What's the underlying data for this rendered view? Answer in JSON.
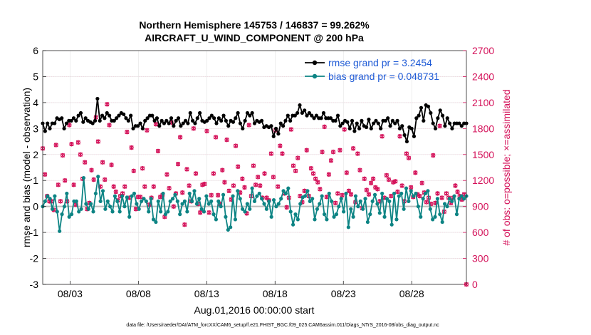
{
  "chart_data": {
    "type": "line",
    "title": "Northern Hemisphere 145753 / 146837 = 99.262%",
    "subtitle": "AIRCRAFT_U_WIND_COMPONENT @ 200 hPa",
    "xlabel": "Aug.01,2016 00:00:00 start",
    "ylabel": "rmse and bias (model - observation)",
    "ylabel_right": "# of obs: o=possible; ×=assimilated",
    "footer": "data file: /Users/raeder/DAI/ATM_forcXX/CAM6_setup/f.e21.FHIST_BGC.f09_025.CAM6assim.011/Diags_NTrS_2016-08/obs_diag_output.nc",
    "ylim": [
      -3,
      6
    ],
    "ylim_right": [
      0,
      2700
    ],
    "yticks": [
      "-3",
      "-2",
      "-1",
      "0",
      "1",
      "2",
      "3",
      "4",
      "5",
      "6"
    ],
    "yticks_right": [
      "0",
      "300",
      "600",
      "900",
      "1200",
      "1500",
      "1800",
      "2100",
      "2400",
      "2700"
    ],
    "x_range_days": [
      1.0,
      32.0
    ],
    "xticks": [
      {
        "day": 3,
        "label": "08/03"
      },
      {
        "day": 8,
        "label": "08/08"
      },
      {
        "day": 13,
        "label": "08/13"
      },
      {
        "day": 18,
        "label": "08/18"
      },
      {
        "day": 23,
        "label": "08/23"
      },
      {
        "day": 28,
        "label": "08/28"
      }
    ],
    "grid": true,
    "legend_position": "top-right",
    "series": [
      {
        "name": "rmse grand pr = 3.2454",
        "color": "#000000",
        "values": [
          3.2,
          2.9,
          3.2,
          3.0,
          3.2,
          3.2,
          3.4,
          3.35,
          3.4,
          3.0,
          3.2,
          3.3,
          3.3,
          3.4,
          3.3,
          3.5,
          3.6,
          3.25,
          3.4,
          3.3,
          3.25,
          3.2,
          3.3,
          4.15,
          3.3,
          3.5,
          3.4,
          3.6,
          3.5,
          3.3,
          3.3,
          3.4,
          3.5,
          3.6,
          3.55,
          3.4,
          3.3,
          3.5,
          3.0,
          3.1,
          3.1,
          3.2,
          3.0,
          3.3,
          3.4,
          3.5,
          3.5,
          3.3,
          3.4,
          3.1,
          3.3,
          3.2,
          3.3,
          3.2,
          3.4,
          3.1,
          3.3,
          3.4,
          3.1,
          3.2,
          3.3,
          3.2,
          3.6,
          3.3,
          3.2,
          3.4,
          3.6,
          3.3,
          3.25,
          3.3,
          3.4,
          3.5,
          3.4,
          3.2,
          3.4,
          3.3,
          3.5,
          3.3,
          3.1,
          3.3,
          3.25,
          3.4,
          3.6,
          3.2,
          3.0,
          3.3,
          3.6,
          3.5,
          3.6,
          3.2,
          3.3,
          3.25,
          3.3,
          3.05,
          3.1,
          3.05,
          3.1,
          2.7,
          3.0,
          2.8,
          3.2,
          3.1,
          3.3,
          3.5,
          3.3,
          3.5,
          3.5,
          3.6,
          3.9,
          3.6,
          3.7,
          3.5,
          3.6,
          3.5,
          3.4,
          3.5,
          3.4,
          3.4,
          3.6,
          3.4,
          3.4,
          3.4,
          3.3,
          3.3,
          3.5,
          3.1,
          3.2,
          3.3,
          3.25,
          3.0,
          3.3,
          2.9,
          3.2,
          3.0,
          3.3,
          3.1,
          3.05,
          3.35,
          3.0,
          3.2,
          3.3,
          3.2,
          3.0,
          3.3,
          3.3,
          3.4,
          3.1,
          3.3,
          3.2,
          3.3,
          3.0,
          3.1,
          2.75,
          2.5,
          3.05,
          3.0,
          2.7,
          3.4,
          3.5,
          3.8,
          3.3,
          3.9,
          3.85,
          3.6,
          3.2,
          3.0,
          3.4,
          3.7,
          3.5,
          3.1,
          3.4,
          3.2,
          3.0,
          3.2,
          3.2,
          3.2,
          3.1,
          3.2,
          3.2
        ]
      },
      {
        "name": "bias grand pr = 0.048731",
        "color": "#0d8484",
        "values": [
          0.0,
          0.2,
          0.4,
          0.3,
          -0.1,
          0.4,
          -0.2,
          -0.95,
          -0.3,
          0.0,
          0.5,
          -0.4,
          -0.3,
          0.2,
          0.2,
          -0.2,
          -0.1,
          1.1,
          0.1,
          -0.1,
          0.1,
          -0.2,
          0.5,
          1.15,
          0.2,
          0.6,
          -0.1,
          0.2,
          0.0,
          -0.2,
          0.4,
          0.2,
          -0.2,
          0.4,
          0.0,
          0.35,
          -0.4,
          0.4,
          0.5,
          0.1,
          -0.1,
          0.2,
          0.3,
          0.2,
          -0.2,
          0.3,
          -0.5,
          -0.6,
          0.2,
          -0.2,
          0.5,
          -0.3,
          -0.2,
          0.2,
          0.3,
          0.45,
          0.2,
          -0.3,
          0.1,
          0.2,
          -0.2,
          0.5,
          0.2,
          0.6,
          0.1,
          0.3,
          -0.1,
          -0.2,
          0.4,
          0.1,
          0.2,
          -0.3,
          -0.5,
          0.2,
          0.0,
          0.45,
          -0.4,
          -0.9,
          -0.8,
          0.4,
          -0.5,
          0.6,
          0.3,
          -0.1,
          -0.2,
          0.1,
          -0.1,
          0.7,
          0.2,
          0.4,
          0.5,
          0.3,
          0.1,
          -0.1,
          0.2,
          -0.4,
          0.25,
          0.0,
          0.1,
          0.3,
          0.6,
          0.5,
          0.7,
          -0.2,
          -0.7,
          -0.3,
          -0.5,
          0.1,
          0.35,
          0.4,
          0.6,
          0.2,
          0.3,
          -0.5,
          -0.1,
          0.1,
          0.4,
          -0.3,
          -0.5,
          0.5,
          0.2,
          -0.4,
          -0.3,
          0.0,
          0.3,
          -0.2,
          0.5,
          -0.8,
          -0.1,
          -0.4,
          0.4,
          0.0,
          0.2,
          -0.1,
          0.3,
          -0.6,
          -0.3,
          0.2,
          0.45,
          0.1,
          -0.25,
          0.5,
          -0.4,
          0.3,
          0.2,
          -0.7,
          0.5,
          -0.5,
          0.4,
          0.5,
          -0.1,
          0.7,
          0.2,
          0.6,
          0.4,
          0.5,
          0.0,
          -0.4,
          0.3,
          0.5,
          0.6,
          -0.1,
          -0.5,
          -0.4,
          0.3,
          -0.3,
          -0.6,
          0.1,
          0.0,
          0.3,
          0.2,
          0.4,
          -0.3,
          0.3,
          0.4,
          0.3,
          0.4
        ]
      },
      {
        "name": "# of obs",
        "color": "#d41159",
        "values": [
          1570,
          1270,
          1020,
          960,
          960,
          860,
          1610,
          1150,
          960,
          1490,
          1200,
          960,
          1840,
          1620,
          1150,
          920,
          1640,
          1500,
          1220,
          1410,
          870,
          940,
          1320,
          1210,
          1930,
          1650,
          1130,
          1410,
          1210,
          2080,
          1840,
          1380,
          1130,
          1070,
          970,
          1020,
          1050,
          1130,
          1760,
          1000,
          1580,
          1310,
          870,
          1010,
          1010,
          1340,
          1130,
          1780,
          920,
          1000,
          1130,
          1850,
          1540,
          1010,
          1030,
          780,
          1270,
          1110,
          1870,
          900,
          1050,
          1390,
          1700,
          1060,
          690,
          1330,
          1140,
          960,
          1800,
          1280,
          930,
          830,
          1150,
          1160,
          1770,
          830,
          1030,
          1280,
          1700,
          1030,
          930,
          1320,
          1180,
          1670,
          1080,
          980,
          1140,
          1600,
          1360,
          1060,
          1220,
          1120,
          820,
          1840,
          1020,
          1370,
          1150,
          1240,
          1140,
          1000,
          1280,
          1000,
          970,
          1510,
          1240,
          1780,
          1130,
          1600,
          1510,
          1050,
          890,
          1000,
          1790,
          1370,
          1310,
          1460,
          1020,
          950,
          1080,
          1550,
          1020,
          1340,
          1280,
          1220,
          1180,
          1100,
          1530,
          1820,
          1010,
          1270,
          1430,
          1530,
          940,
          1050,
          1550,
          1030,
          1790,
          1290,
          1080,
          1040,
          1570,
          950,
          1510,
          1320,
          880,
          1220,
          1090,
          1040,
          1170,
          1220,
          1120,
          1100,
          960,
          1710,
          1000,
          1260,
          1210,
          1020,
          1180,
          1190,
          1070,
          1710,
          1140,
          960,
          1510,
          1460,
          1120,
          1010,
          1290,
          1040,
          1020,
          1170,
          1060,
          950,
          1000,
          930,
          1490,
          940,
          1050,
          1830,
          1000,
          840,
          1050,
          1000,
          940,
          1000,
          1140,
          1070,
          1020,
          980,
          1040,
          0
        ]
      }
    ]
  },
  "legend": {
    "rmse_label": "rmse grand pr = 3.2454",
    "bias_label": "bias grand pr = 0.048731"
  }
}
